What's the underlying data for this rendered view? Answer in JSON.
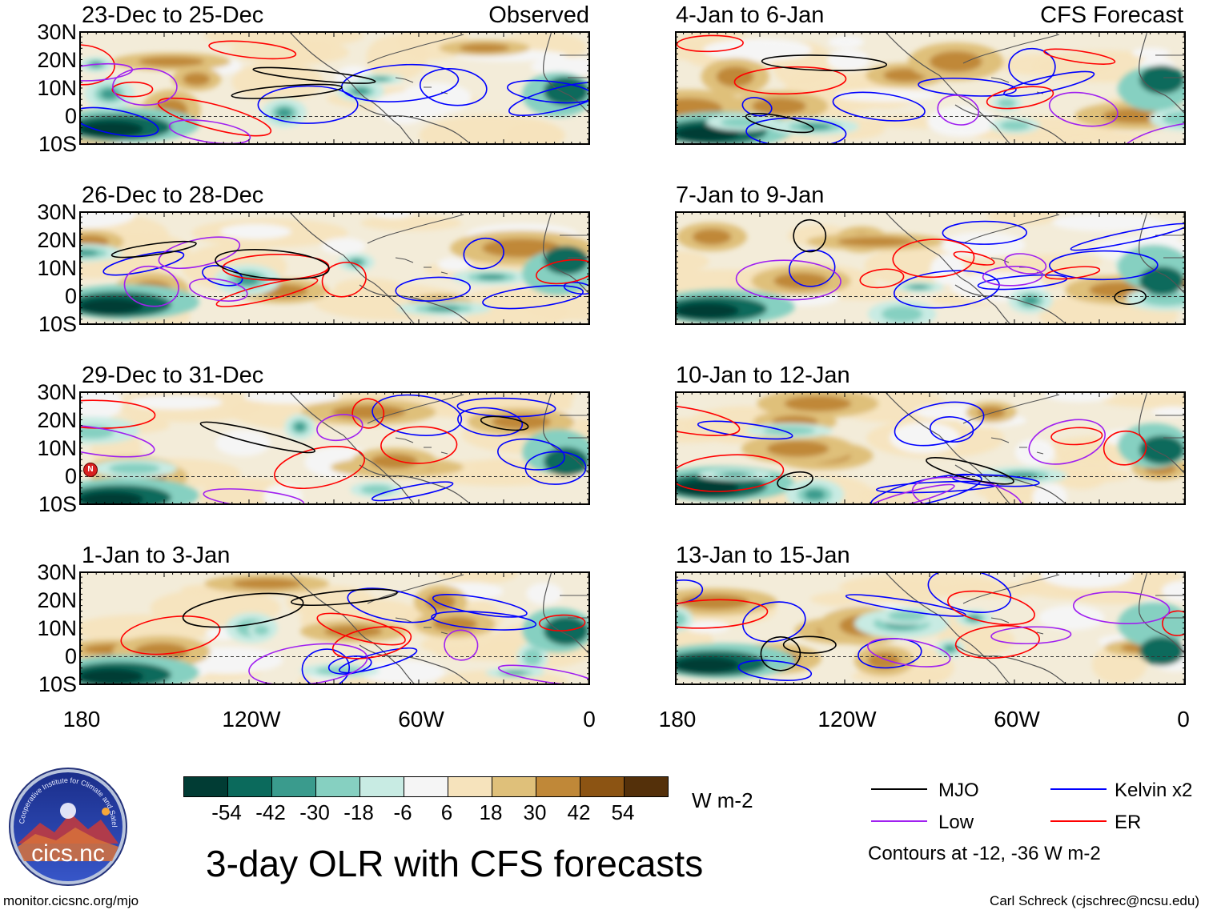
{
  "figure": {
    "title": "3-day OLR with CFS forecasts",
    "units": "W m-2",
    "contour_note": "Contours at -12, -36 W m-2",
    "credit": "Carl Schreck (cjschrec@ncsu.edu)",
    "website": "monitor.cicsnc.org/mjo",
    "logo_text": "cics.nc",
    "logo_ring_text": "Cooperative Institute for Climate and Satellites"
  },
  "left_column": {
    "tag": "Observed",
    "panels": [
      {
        "title": "23-Dec to 25-Dec"
      },
      {
        "title": "26-Dec to 28-Dec"
      },
      {
        "title": "29-Dec to 31-Dec"
      },
      {
        "title": "1-Jan to 3-Jan"
      }
    ]
  },
  "right_column": {
    "tag": "CFS Forecast",
    "panels": [
      {
        "title": "4-Jan to 6-Jan"
      },
      {
        "title": "7-Jan to 9-Jan"
      },
      {
        "title": "10-Jan to 12-Jan"
      },
      {
        "title": "13-Jan to 15-Jan"
      }
    ]
  },
  "axes": {
    "lat_labels": [
      "30N",
      "20N",
      "10N",
      "0",
      "10S"
    ],
    "lon_labels": [
      "180",
      "120W",
      "60W",
      "0"
    ]
  },
  "colorbar": {
    "labels": [
      "-54",
      "-42",
      "-30",
      "-18",
      "-6",
      "6",
      "18",
      "30",
      "42",
      "54"
    ],
    "colors": [
      "#013c34",
      "#0b6a5c",
      "#3a9b8d",
      "#86d0c1",
      "#c8ebe3",
      "#f5f5f5",
      "#f6e3bc",
      "#dfc07a",
      "#c08838",
      "#8c5413",
      "#54300a"
    ]
  },
  "legend": {
    "items": [
      {
        "label": "MJO",
        "color": "#000000"
      },
      {
        "label": "Kelvin x2",
        "color": "#0000ff"
      },
      {
        "label": "Low",
        "color": "#a020f0"
      },
      {
        "label": "ER",
        "color": "#ff0000"
      }
    ]
  },
  "storm_marker": {
    "label": "N"
  }
}
